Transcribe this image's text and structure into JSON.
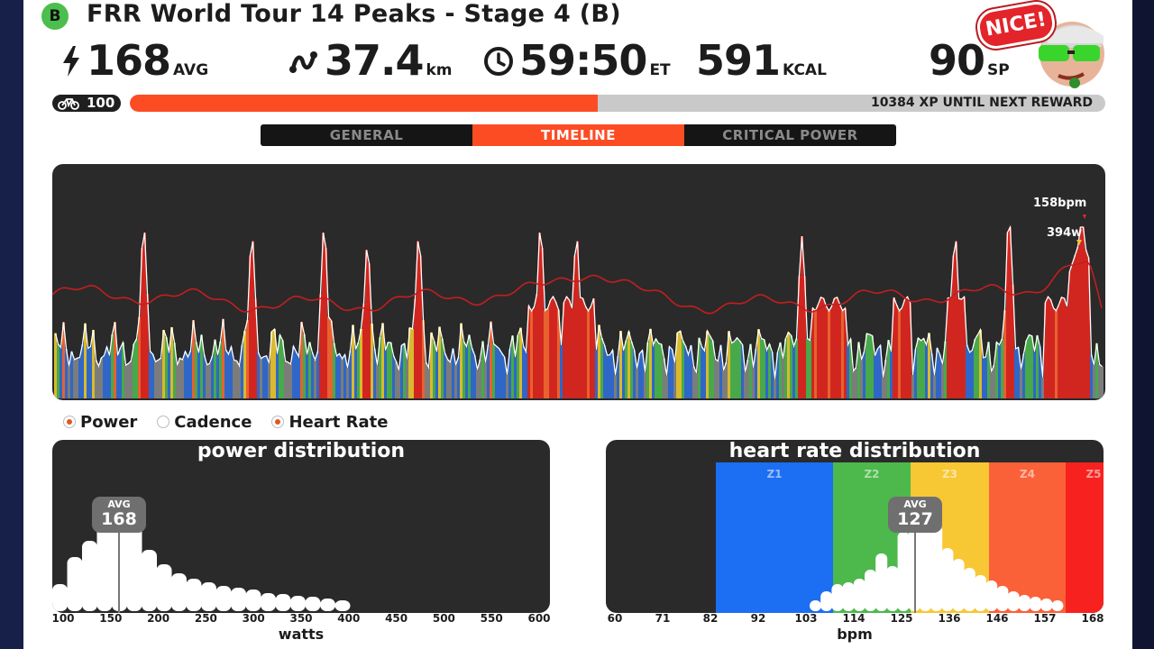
{
  "header": {
    "badge": "B",
    "title": "FRR World Tour 14 Peaks - Stage 4 (B)"
  },
  "stats": {
    "power": {
      "icon": "lightning-icon",
      "value": "168",
      "unit": "AVG"
    },
    "distance": {
      "icon": "route-icon",
      "value": "37.4",
      "unit": "km"
    },
    "time": {
      "icon": "clock-icon",
      "value": "59:50",
      "unit": "ET"
    },
    "calories": {
      "value": "591",
      "unit": "KCAL"
    },
    "sport_points": {
      "value": "90",
      "unit": "SP"
    }
  },
  "mascot": {
    "speech": "NICE!"
  },
  "progress": {
    "level": "100",
    "fill_fraction": 0.48,
    "xp_text": "10384 XP UNTIL NEXT REWARD",
    "fill_color": "#fc4c23"
  },
  "tabs": [
    {
      "label": "GENERAL",
      "active": false
    },
    {
      "label": "TIMELINE",
      "active": true
    },
    {
      "label": "CRITICAL POWER",
      "active": false
    }
  ],
  "timeline": {
    "peak_hr_label": "158bpm",
    "peak_power_label": "394w"
  },
  "legend": [
    {
      "label": "Power",
      "on": true
    },
    {
      "label": "Cadence",
      "on": false
    },
    {
      "label": "Heart Rate",
      "on": true
    }
  ],
  "power_distribution": {
    "title": "power distribution",
    "avg_label": "AVG",
    "avg_value": "168",
    "x_ticks": [
      "100",
      "150",
      "200",
      "250",
      "300",
      "350",
      "400",
      "450",
      "500",
      "550",
      "600"
    ],
    "x_label": "watts"
  },
  "heart_rate_distribution": {
    "title": "heart rate distribution",
    "avg_label": "AVG",
    "avg_value": "127",
    "zones": [
      {
        "label": "Z1",
        "color": "#1c6ef2"
      },
      {
        "label": "Z2",
        "color": "#4db94c"
      },
      {
        "label": "Z3",
        "color": "#f8c734"
      },
      {
        "label": "Z4",
        "color": "#fb6138"
      },
      {
        "label": "Z5",
        "color": "#f7221f"
      }
    ],
    "x_ticks": [
      "60",
      "71",
      "82",
      "92",
      "103",
      "114",
      "125",
      "136",
      "146",
      "157",
      "168"
    ],
    "x_label": "bpm"
  }
}
